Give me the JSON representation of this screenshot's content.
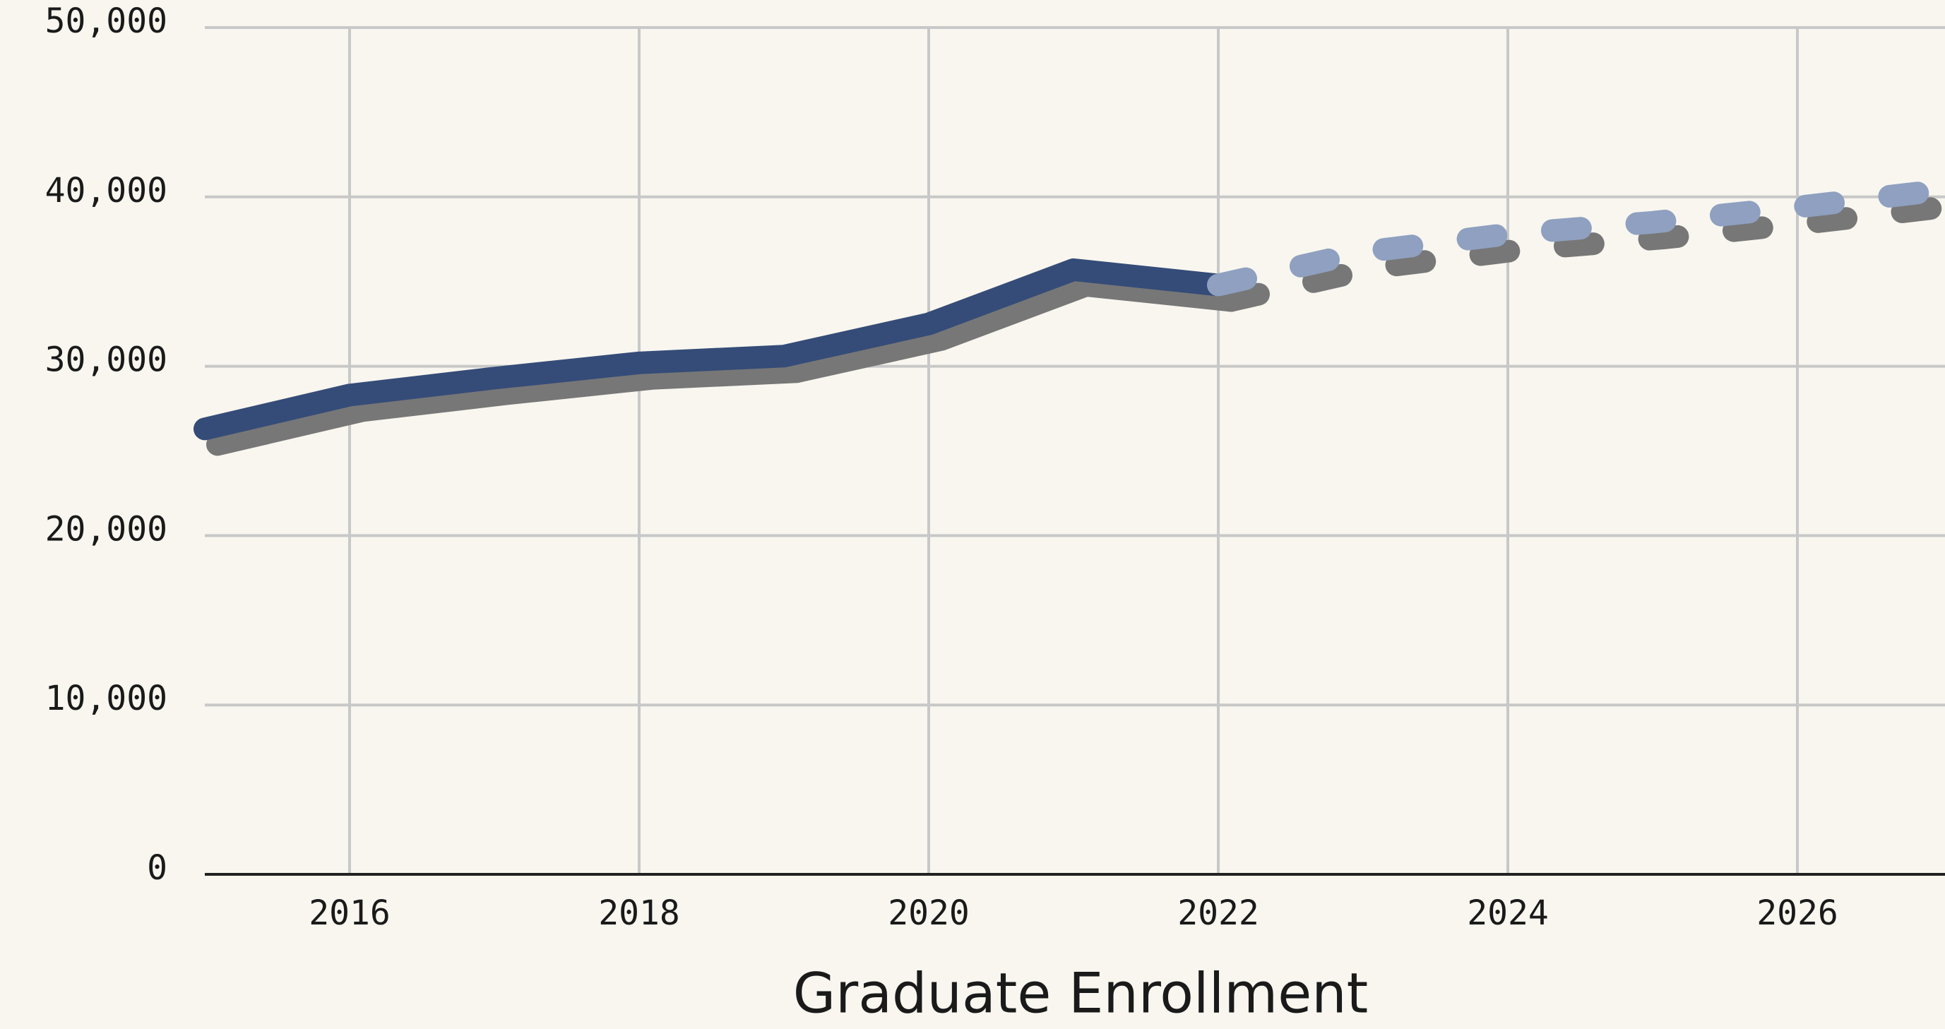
{
  "chart_data": {
    "type": "line",
    "title": "Graduate Enrollment",
    "x": [
      2015,
      2016,
      2017,
      2018,
      2019,
      2020,
      2021,
      2022,
      2023,
      2024,
      2025,
      2026,
      2027
    ],
    "series": [
      {
        "color": "#354c78",
        "dashed": false,
        "values": [
          26300,
          28300,
          29300,
          30200,
          30600,
          32500,
          35700,
          34800,
          null,
          null,
          null,
          null,
          null
        ]
      },
      {
        "color": "#8fa0c0",
        "dashed": true,
        "values": [
          null,
          null,
          null,
          null,
          null,
          null,
          null,
          34800,
          36750,
          37800,
          38500,
          39400,
          40400
        ]
      }
    ],
    "xlim": [
      2015,
      2027
    ],
    "xticks": [
      2016,
      2018,
      2020,
      2022,
      2024,
      2026
    ],
    "ylim": [
      0,
      50000
    ],
    "yticks": [
      0,
      {
        "value": 10000,
        "label": "10,000"
      },
      {
        "value": 20000,
        "label": "20,000"
      },
      {
        "value": 30000,
        "label": "30,000"
      },
      {
        "value": 40000,
        "label": "40,000"
      },
      {
        "value": 50000,
        "label": "50,000"
      }
    ],
    "grid": true,
    "shadow_color": "#777777"
  }
}
